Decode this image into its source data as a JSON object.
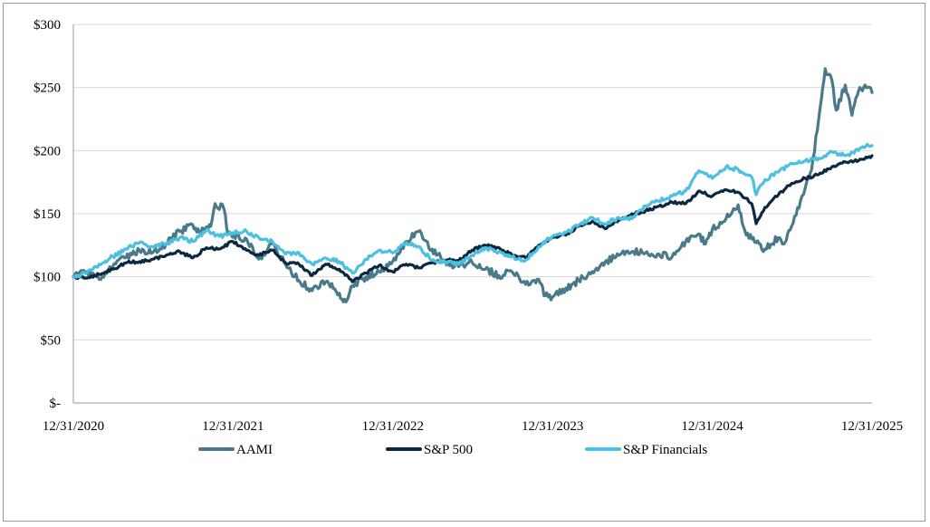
{
  "chart_data": {
    "type": "line",
    "title": "",
    "xlabel": "",
    "ylabel": "",
    "x_tick_labels": [
      "12/31/2020",
      "12/31/2021",
      "12/31/2022",
      "12/31/2023",
      "12/31/2024",
      "12/31/2025"
    ],
    "y_tick_labels": [
      "$-",
      "$50",
      "$100",
      "$150",
      "$200",
      "$250",
      "$300"
    ],
    "y_ticks": [
      0,
      50,
      100,
      150,
      200,
      250,
      300
    ],
    "ylim": [
      0,
      300
    ],
    "xlim": [
      "2020-12-31",
      "2025-12-31"
    ],
    "grid": "horizontal",
    "legend_position": "bottom",
    "series": [
      {
        "name": "AAMI",
        "color": "#4a7a8a",
        "points": [
          [
            "2020-12-31",
            100
          ],
          [
            "2021-01-31",
            104
          ],
          [
            "2021-02-28",
            98
          ],
          [
            "2021-03-31",
            108
          ],
          [
            "2021-04-30",
            115
          ],
          [
            "2021-05-31",
            121
          ],
          [
            "2021-06-30",
            119
          ],
          [
            "2021-07-31",
            126
          ],
          [
            "2021-08-31",
            136
          ],
          [
            "2021-09-30",
            141
          ],
          [
            "2021-10-15",
            135
          ],
          [
            "2021-11-10",
            140
          ],
          [
            "2021-11-20",
            158
          ],
          [
            "2021-12-10",
            154
          ],
          [
            "2021-12-20",
            134
          ],
          [
            "2022-01-31",
            130
          ],
          [
            "2022-02-28",
            114
          ],
          [
            "2022-03-31",
            126
          ],
          [
            "2022-04-30",
            110
          ],
          [
            "2022-05-31",
            97
          ],
          [
            "2022-06-30",
            89
          ],
          [
            "2022-07-31",
            96
          ],
          [
            "2022-08-31",
            87
          ],
          [
            "2022-09-15",
            80
          ],
          [
            "2022-09-30",
            93
          ],
          [
            "2022-10-31",
            100
          ],
          [
            "2022-11-30",
            104
          ],
          [
            "2022-12-31",
            112
          ],
          [
            "2023-01-31",
            128
          ],
          [
            "2023-02-28",
            136
          ],
          [
            "2023-03-31",
            122
          ],
          [
            "2023-04-30",
            112
          ],
          [
            "2023-05-31",
            108
          ],
          [
            "2023-06-30",
            112
          ],
          [
            "2023-07-31",
            106
          ],
          [
            "2023-08-31",
            101
          ],
          [
            "2023-09-30",
            104
          ],
          [
            "2023-10-31",
            94
          ],
          [
            "2023-11-30",
            98
          ],
          [
            "2023-12-15",
            85
          ],
          [
            "2023-12-31",
            84
          ],
          [
            "2024-01-31",
            91
          ],
          [
            "2024-02-29",
            97
          ],
          [
            "2024-03-31",
            104
          ],
          [
            "2024-04-30",
            112
          ],
          [
            "2024-05-31",
            117
          ],
          [
            "2024-06-30",
            120
          ],
          [
            "2024-07-31",
            119
          ],
          [
            "2024-08-31",
            118
          ],
          [
            "2024-09-30",
            116
          ],
          [
            "2024-10-31",
            128
          ],
          [
            "2024-11-30",
            134
          ],
          [
            "2024-12-15",
            126
          ],
          [
            "2024-12-31",
            138
          ],
          [
            "2025-01-31",
            146
          ],
          [
            "2025-02-28",
            157
          ],
          [
            "2025-03-15",
            137
          ],
          [
            "2025-03-31",
            130
          ],
          [
            "2025-04-30",
            122
          ],
          [
            "2025-05-31",
            131
          ],
          [
            "2025-06-15",
            127
          ],
          [
            "2025-06-30",
            140
          ],
          [
            "2025-07-31",
            170
          ],
          [
            "2025-08-15",
            185
          ],
          [
            "2025-08-31",
            225
          ],
          [
            "2025-09-15",
            265
          ],
          [
            "2025-09-30",
            256
          ],
          [
            "2025-10-10",
            232
          ],
          [
            "2025-10-31",
            252
          ],
          [
            "2025-11-15",
            228
          ],
          [
            "2025-11-30",
            247
          ],
          [
            "2025-12-15",
            252
          ],
          [
            "2025-12-31",
            246
          ]
        ]
      },
      {
        "name": "S&P 500",
        "color": "#0b2840",
        "points": [
          [
            "2020-12-31",
            100
          ],
          [
            "2021-01-31",
            99
          ],
          [
            "2021-02-28",
            102
          ],
          [
            "2021-03-31",
            106
          ],
          [
            "2021-04-30",
            111
          ],
          [
            "2021-05-31",
            112
          ],
          [
            "2021-06-30",
            114
          ],
          [
            "2021-07-31",
            117
          ],
          [
            "2021-08-31",
            120
          ],
          [
            "2021-09-30",
            115
          ],
          [
            "2021-10-31",
            123
          ],
          [
            "2021-11-30",
            122
          ],
          [
            "2021-12-31",
            128
          ],
          [
            "2022-01-31",
            121
          ],
          [
            "2022-02-28",
            117
          ],
          [
            "2022-03-31",
            121
          ],
          [
            "2022-04-30",
            111
          ],
          [
            "2022-05-31",
            110
          ],
          [
            "2022-06-30",
            101
          ],
          [
            "2022-07-31",
            110
          ],
          [
            "2022-08-31",
            106
          ],
          [
            "2022-09-30",
            96
          ],
          [
            "2022-10-31",
            103
          ],
          [
            "2022-11-30",
            109
          ],
          [
            "2022-12-31",
            104
          ],
          [
            "2023-01-31",
            110
          ],
          [
            "2023-02-28",
            107
          ],
          [
            "2023-03-31",
            111
          ],
          [
            "2023-04-30",
            113
          ],
          [
            "2023-05-31",
            113
          ],
          [
            "2023-06-30",
            121
          ],
          [
            "2023-07-31",
            125
          ],
          [
            "2023-08-31",
            123
          ],
          [
            "2023-09-30",
            117
          ],
          [
            "2023-10-31",
            115
          ],
          [
            "2023-11-30",
            125
          ],
          [
            "2023-12-31",
            131
          ],
          [
            "2024-01-31",
            133
          ],
          [
            "2024-02-29",
            140
          ],
          [
            "2024-03-31",
            144
          ],
          [
            "2024-04-30",
            138
          ],
          [
            "2024-05-31",
            145
          ],
          [
            "2024-06-30",
            150
          ],
          [
            "2024-07-31",
            152
          ],
          [
            "2024-08-31",
            156
          ],
          [
            "2024-09-30",
            159
          ],
          [
            "2024-10-31",
            158
          ],
          [
            "2024-11-30",
            168
          ],
          [
            "2024-12-31",
            164
          ],
          [
            "2025-01-31",
            169
          ],
          [
            "2025-02-28",
            167
          ],
          [
            "2025-03-31",
            158
          ],
          [
            "2025-04-10",
            142
          ],
          [
            "2025-04-30",
            155
          ],
          [
            "2025-05-31",
            165
          ],
          [
            "2025-06-30",
            174
          ],
          [
            "2025-07-31",
            178
          ],
          [
            "2025-08-31",
            181
          ],
          [
            "2025-09-30",
            187
          ],
          [
            "2025-10-31",
            191
          ],
          [
            "2025-11-30",
            192
          ],
          [
            "2025-12-31",
            196
          ]
        ]
      },
      {
        "name": "S&P Financials",
        "color": "#4dbfe0",
        "points": [
          [
            "2020-12-31",
            100
          ],
          [
            "2021-01-31",
            103
          ],
          [
            "2021-02-28",
            110
          ],
          [
            "2021-03-31",
            116
          ],
          [
            "2021-04-30",
            122
          ],
          [
            "2021-05-31",
            127
          ],
          [
            "2021-06-30",
            124
          ],
          [
            "2021-07-31",
            126
          ],
          [
            "2021-08-31",
            131
          ],
          [
            "2021-09-30",
            128
          ],
          [
            "2021-10-31",
            137
          ],
          [
            "2021-11-30",
            132
          ],
          [
            "2021-12-31",
            135
          ],
          [
            "2022-01-31",
            136
          ],
          [
            "2022-02-28",
            131
          ],
          [
            "2022-03-31",
            128
          ],
          [
            "2022-04-30",
            118
          ],
          [
            "2022-05-31",
            119
          ],
          [
            "2022-06-30",
            110
          ],
          [
            "2022-07-31",
            115
          ],
          [
            "2022-08-31",
            112
          ],
          [
            "2022-09-30",
            103
          ],
          [
            "2022-10-31",
            114
          ],
          [
            "2022-11-30",
            121
          ],
          [
            "2022-12-31",
            119
          ],
          [
            "2023-01-31",
            127
          ],
          [
            "2023-02-28",
            124
          ],
          [
            "2023-03-31",
            113
          ],
          [
            "2023-04-30",
            112
          ],
          [
            "2023-05-31",
            110
          ],
          [
            "2023-06-30",
            117
          ],
          [
            "2023-07-31",
            123
          ],
          [
            "2023-08-31",
            120
          ],
          [
            "2023-09-30",
            116
          ],
          [
            "2023-10-31",
            113
          ],
          [
            "2023-11-30",
            124
          ],
          [
            "2023-12-31",
            132
          ],
          [
            "2024-01-31",
            135
          ],
          [
            "2024-02-29",
            141
          ],
          [
            "2024-03-31",
            147
          ],
          [
            "2024-04-30",
            142
          ],
          [
            "2024-05-31",
            147
          ],
          [
            "2024-06-30",
            146
          ],
          [
            "2024-07-31",
            156
          ],
          [
            "2024-08-31",
            160
          ],
          [
            "2024-09-30",
            164
          ],
          [
            "2024-10-31",
            168
          ],
          [
            "2024-11-30",
            184
          ],
          [
            "2024-12-31",
            178
          ],
          [
            "2025-01-31",
            187
          ],
          [
            "2025-02-28",
            185
          ],
          [
            "2025-03-31",
            179
          ],
          [
            "2025-04-10",
            165
          ],
          [
            "2025-04-30",
            177
          ],
          [
            "2025-05-31",
            183
          ],
          [
            "2025-06-30",
            190
          ],
          [
            "2025-07-31",
            192
          ],
          [
            "2025-08-31",
            194
          ],
          [
            "2025-09-30",
            199
          ],
          [
            "2025-10-31",
            196
          ],
          [
            "2025-11-30",
            200
          ],
          [
            "2025-12-20",
            205
          ],
          [
            "2025-12-31",
            204
          ]
        ]
      }
    ]
  }
}
